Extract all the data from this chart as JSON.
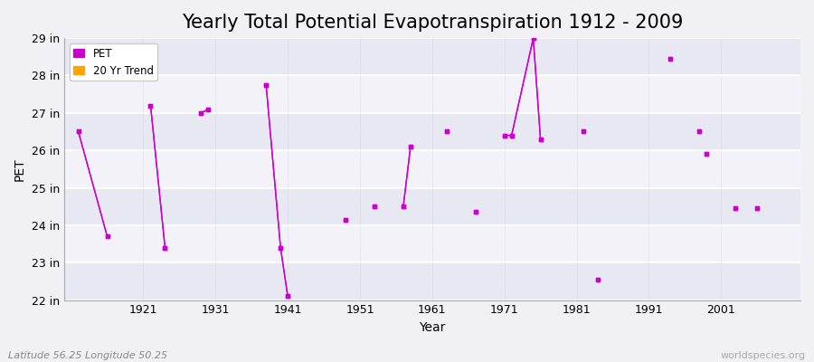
{
  "title": "Yearly Total Potential Evapotranspiration 1912 - 2009",
  "xlabel": "Year",
  "ylabel": "PET",
  "subtitle_left": "Latitude 56.25 Longitude 50.25",
  "subtitle_right": "worldspecies.org",
  "ylim": [
    22,
    29
  ],
  "yticks": [
    22,
    23,
    24,
    25,
    26,
    27,
    28,
    29
  ],
  "ytick_labels": [
    "22 in",
    "23 in",
    "24 in",
    "25 in",
    "26 in",
    "27 in",
    "28 in",
    "29 in"
  ],
  "xticks": [
    1921,
    1931,
    1941,
    1951,
    1961,
    1971,
    1981,
    1991,
    2001
  ],
  "xlim": [
    1910,
    2012
  ],
  "background_color": "#f0f0f5",
  "plot_bg_color": "#f0f0f5",
  "grid_color_major": "#d8d8e8",
  "grid_color_minor": "#e8e8f2",
  "pet_color": "#cc00cc",
  "trend_color": "#ffa500",
  "pet_points": [
    [
      1912,
      26.5
    ],
    [
      1916,
      23.7
    ],
    [
      1922,
      27.2
    ],
    [
      1924,
      23.4
    ],
    [
      1929,
      27.0
    ],
    [
      1930,
      27.1
    ],
    [
      1938,
      27.75
    ],
    [
      1940,
      23.4
    ],
    [
      1941,
      22.1
    ],
    [
      1949,
      24.15
    ],
    [
      1953,
      24.5
    ],
    [
      1957,
      24.5
    ],
    [
      1958,
      26.1
    ],
    [
      1963,
      26.5
    ],
    [
      1967,
      24.35
    ],
    [
      1971,
      26.4
    ],
    [
      1972,
      26.4
    ],
    [
      1975,
      29.0
    ],
    [
      1976,
      26.3
    ],
    [
      1982,
      26.5
    ],
    [
      1984,
      22.55
    ],
    [
      1994,
      28.45
    ],
    [
      1998,
      26.5
    ],
    [
      1999,
      25.9
    ],
    [
      2003,
      24.45
    ],
    [
      2006,
      24.45
    ]
  ],
  "pet_lines": [
    [
      [
        1912,
        26.5
      ],
      [
        1916,
        23.7
      ]
    ],
    [
      [
        1922,
        27.2
      ],
      [
        1924,
        23.4
      ]
    ],
    [
      [
        1929,
        27.0
      ],
      [
        1930,
        27.1
      ]
    ],
    [
      [
        1938,
        27.75
      ],
      [
        1940,
        23.4
      ],
      [
        1941,
        22.1
      ]
    ],
    [
      [
        1957,
        24.5
      ],
      [
        1958,
        26.1
      ]
    ],
    [
      [
        1971,
        26.4
      ],
      [
        1972,
        26.4
      ],
      [
        1975,
        29.0
      ],
      [
        1976,
        26.3
      ]
    ]
  ],
  "title_fontsize": 15,
  "axis_label_fontsize": 10,
  "tick_fontsize": 9
}
